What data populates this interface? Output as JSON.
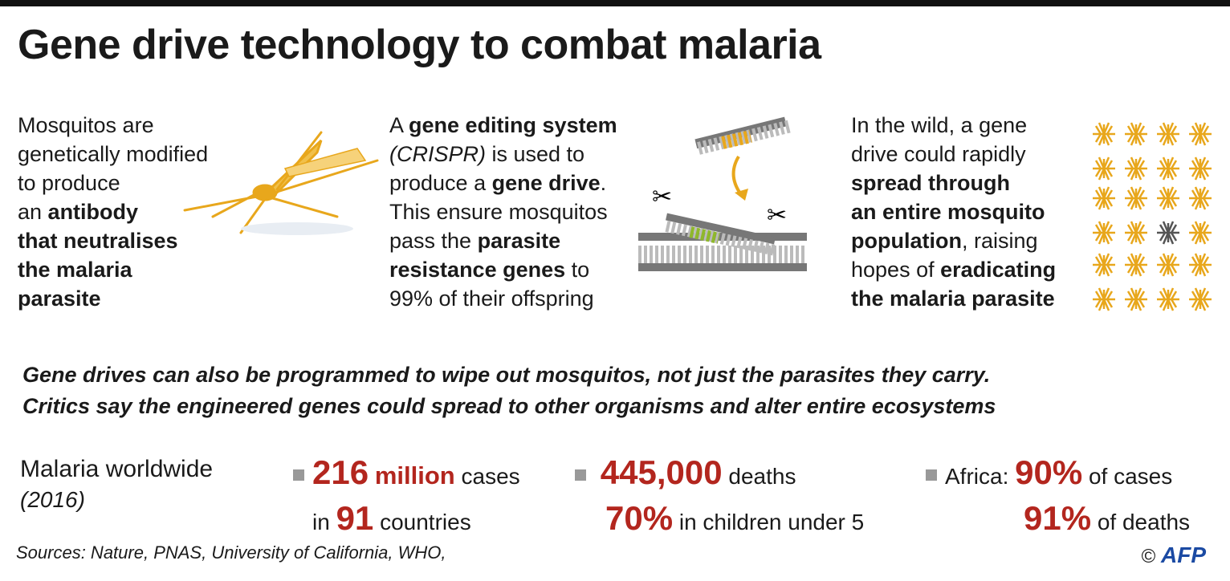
{
  "title": "Gene drive technology to combat malaria",
  "panels": [
    {
      "text": [
        "Mosquitos are",
        "genetically modified",
        "to produce",
        "an ",
        "antibody",
        "that neutralises",
        "the malaria",
        "parasite"
      ]
    },
    {
      "text": [
        "A ",
        "gene editing system",
        "(CRISPR)",
        " is used to",
        "produce a ",
        "gene drive",
        ".",
        "This ensure mosquitos",
        "pass the ",
        "parasite",
        "resistance genes",
        " to",
        "99% of their offspring"
      ]
    },
    {
      "text": [
        "In the wild, a gene",
        "drive could rapidly",
        "spread through",
        "an entire mosquito",
        "population",
        ", raising",
        "hopes of ",
        "eradicating",
        "the malaria parasite"
      ]
    }
  ],
  "note": [
    "Gene drives can also be programmed to wipe out mosquitos, not just the parasites they carry.",
    "Critics say the engineered genes could spread to other organisms and alter entire ecosystems"
  ],
  "stats": {
    "heading": "Malaria worldwide",
    "year": "(2016)",
    "cases": [
      "216",
      "million",
      " cases",
      "in ",
      "91",
      " countries"
    ],
    "deaths": [
      "445,000",
      " deaths",
      "70%",
      " in children under 5"
    ],
    "africa": [
      "Africa:",
      "90%",
      " of cases",
      "91%",
      " of deaths"
    ]
  },
  "sources": "Sources: Nature, PNAS, University of California, WHO,",
  "credit": [
    "©",
    "AFP"
  ]
}
